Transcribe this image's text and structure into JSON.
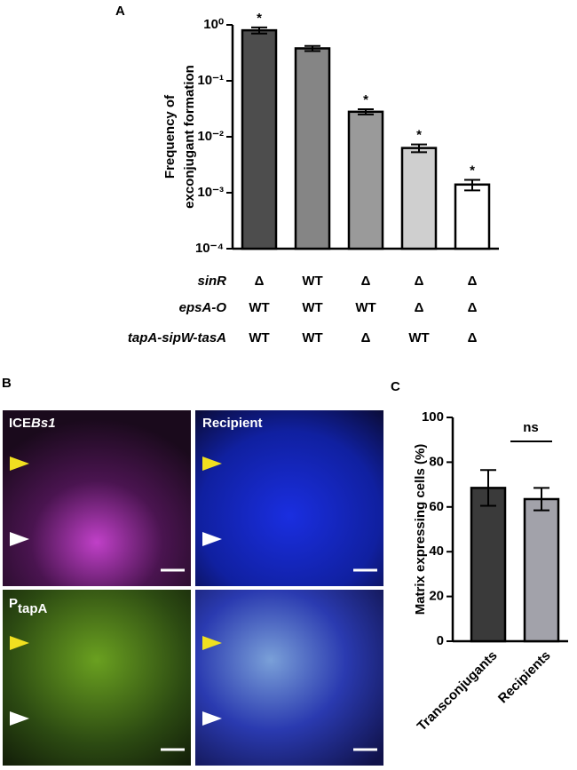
{
  "panel_labels": [
    "A",
    "B",
    "C"
  ],
  "chart_data": [
    {
      "type": "bar",
      "y_label": [
        "Frequency of",
        "exconjugant formation"
      ],
      "y_scale": "log",
      "ylim": [
        0.0001,
        1
      ],
      "yticks": [
        {
          "value": 1,
          "label": "10⁰"
        },
        {
          "value": 0.1,
          "label": "10⁻¹"
        },
        {
          "value": 0.01,
          "label": "10⁻²"
        },
        {
          "value": 0.001,
          "label": "10⁻³"
        },
        {
          "value": 0.0001,
          "label": "10⁻⁴"
        }
      ],
      "values": [
        0.8,
        0.38,
        0.028,
        0.0063,
        0.0014
      ],
      "errors": [
        0.1,
        0.04,
        0.003,
        0.001,
        0.0003
      ],
      "colors": [
        "#4d4d4d",
        "#858585",
        "#9a9a9a",
        "#cfcfcf",
        "#ffffff"
      ],
      "markers": [
        "*",
        null,
        "*",
        "*",
        "*"
      ],
      "genotype_table": [
        {
          "label": "sinR",
          "values": [
            "Δ",
            "WT",
            "Δ",
            "Δ",
            "Δ"
          ]
        },
        {
          "label": "epsA-O",
          "values": [
            "WT",
            "WT",
            "WT",
            "Δ",
            "Δ"
          ]
        },
        {
          "label": "tapA-sipW-tasA",
          "values": [
            "WT",
            "WT",
            "Δ",
            "WT",
            "Δ"
          ]
        }
      ]
    },
    {
      "type": "bar",
      "y_label": "Matrix expressing cells (%)",
      "ylim": [
        0,
        100
      ],
      "yticks": [
        0,
        20,
        40,
        60,
        80,
        100
      ],
      "categories": [
        "Transconjugants",
        "Recipients"
      ],
      "values": [
        68.5,
        63.5
      ],
      "errors": [
        8,
        5
      ],
      "colors": [
        "#3a3a3a",
        "#a2a2aa"
      ],
      "significance_label": "ns"
    }
  ],
  "micrographs": [
    {
      "label_parts": [
        "ICE",
        "Bs1"
      ]
    },
    {
      "label_parts": [
        "Recipient"
      ]
    },
    {
      "label_parts": [
        "P",
        "tapA"
      ]
    }
  ]
}
